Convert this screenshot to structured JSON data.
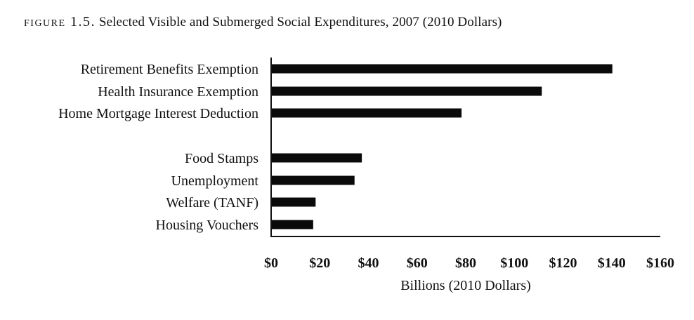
{
  "caption": {
    "label": "figure 1.5.",
    "text": "Selected Visible and Submerged Social Expenditures, 2007 (2010 Dollars)"
  },
  "chart_data": {
    "type": "bar",
    "orientation": "horizontal",
    "categories": [
      "Retirement Benefits Exemption",
      "Health Insurance Exemption",
      "Home Mortgage Interest Deduction",
      "Food Stamps",
      "Unemployment",
      "Welfare (TANF)",
      "Housing Vouchers"
    ],
    "groups": [
      [
        "Retirement Benefits Exemption",
        "Health Insurance Exemption",
        "Home Mortgage Interest Deduction"
      ],
      [
        "Food Stamps",
        "Unemployment",
        "Welfare (TANF)",
        "Housing Vouchers"
      ]
    ],
    "values": [
      140,
      111,
      78,
      37,
      34,
      18,
      17
    ],
    "xlabel": "Billions (2010 Dollars)",
    "ylabel": "",
    "xlim": [
      0,
      160
    ],
    "xticks": [
      "$0",
      "$20",
      "$40",
      "$60",
      "$80",
      "$100",
      "$120",
      "$140",
      "$160"
    ],
    "grid": false,
    "bar_color": "#0a0a0a"
  }
}
